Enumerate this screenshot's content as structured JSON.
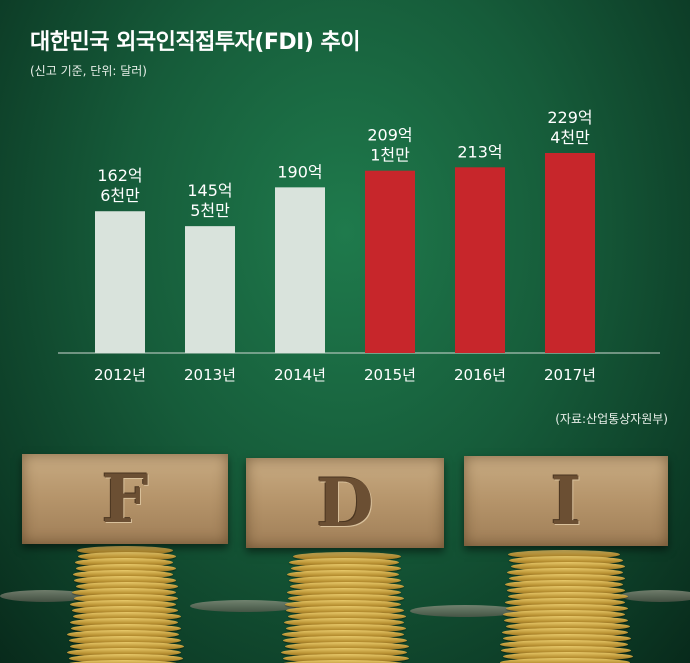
{
  "chart_data": {
    "type": "bar",
    "title": "대한민국 외국인직접투자(FDI) 추이",
    "subtitle": "(신고 기준, 단위: 달러)",
    "source": "(자료:산업통상자원부)",
    "categories": [
      "2012년",
      "2013년",
      "2014년",
      "2015년",
      "2016년",
      "2017년"
    ],
    "values": [
      162.6,
      145.5,
      190,
      209.1,
      213,
      229.4
    ],
    "data_labels": [
      [
        "162억",
        "6천만"
      ],
      [
        "145억",
        "5천만"
      ],
      [
        "190억"
      ],
      [
        "209억",
        "1천만"
      ],
      [
        "213억"
      ],
      [
        "229억",
        "4천만"
      ]
    ],
    "bar_colors": [
      "#d9e3dc",
      "#d9e3dc",
      "#d9e3dc",
      "#c7262b",
      "#c7262b",
      "#c7262b"
    ],
    "ylim": [
      0,
      229.4
    ],
    "grid": false,
    "xlabel": "",
    "ylabel": ""
  },
  "photo": {
    "blocks": [
      "F",
      "D",
      "I"
    ]
  },
  "colors": {
    "background": "#165c3a",
    "highlight_bar": "#c7262b",
    "normal_bar": "#d9e3dc",
    "text": "#ffffff"
  }
}
